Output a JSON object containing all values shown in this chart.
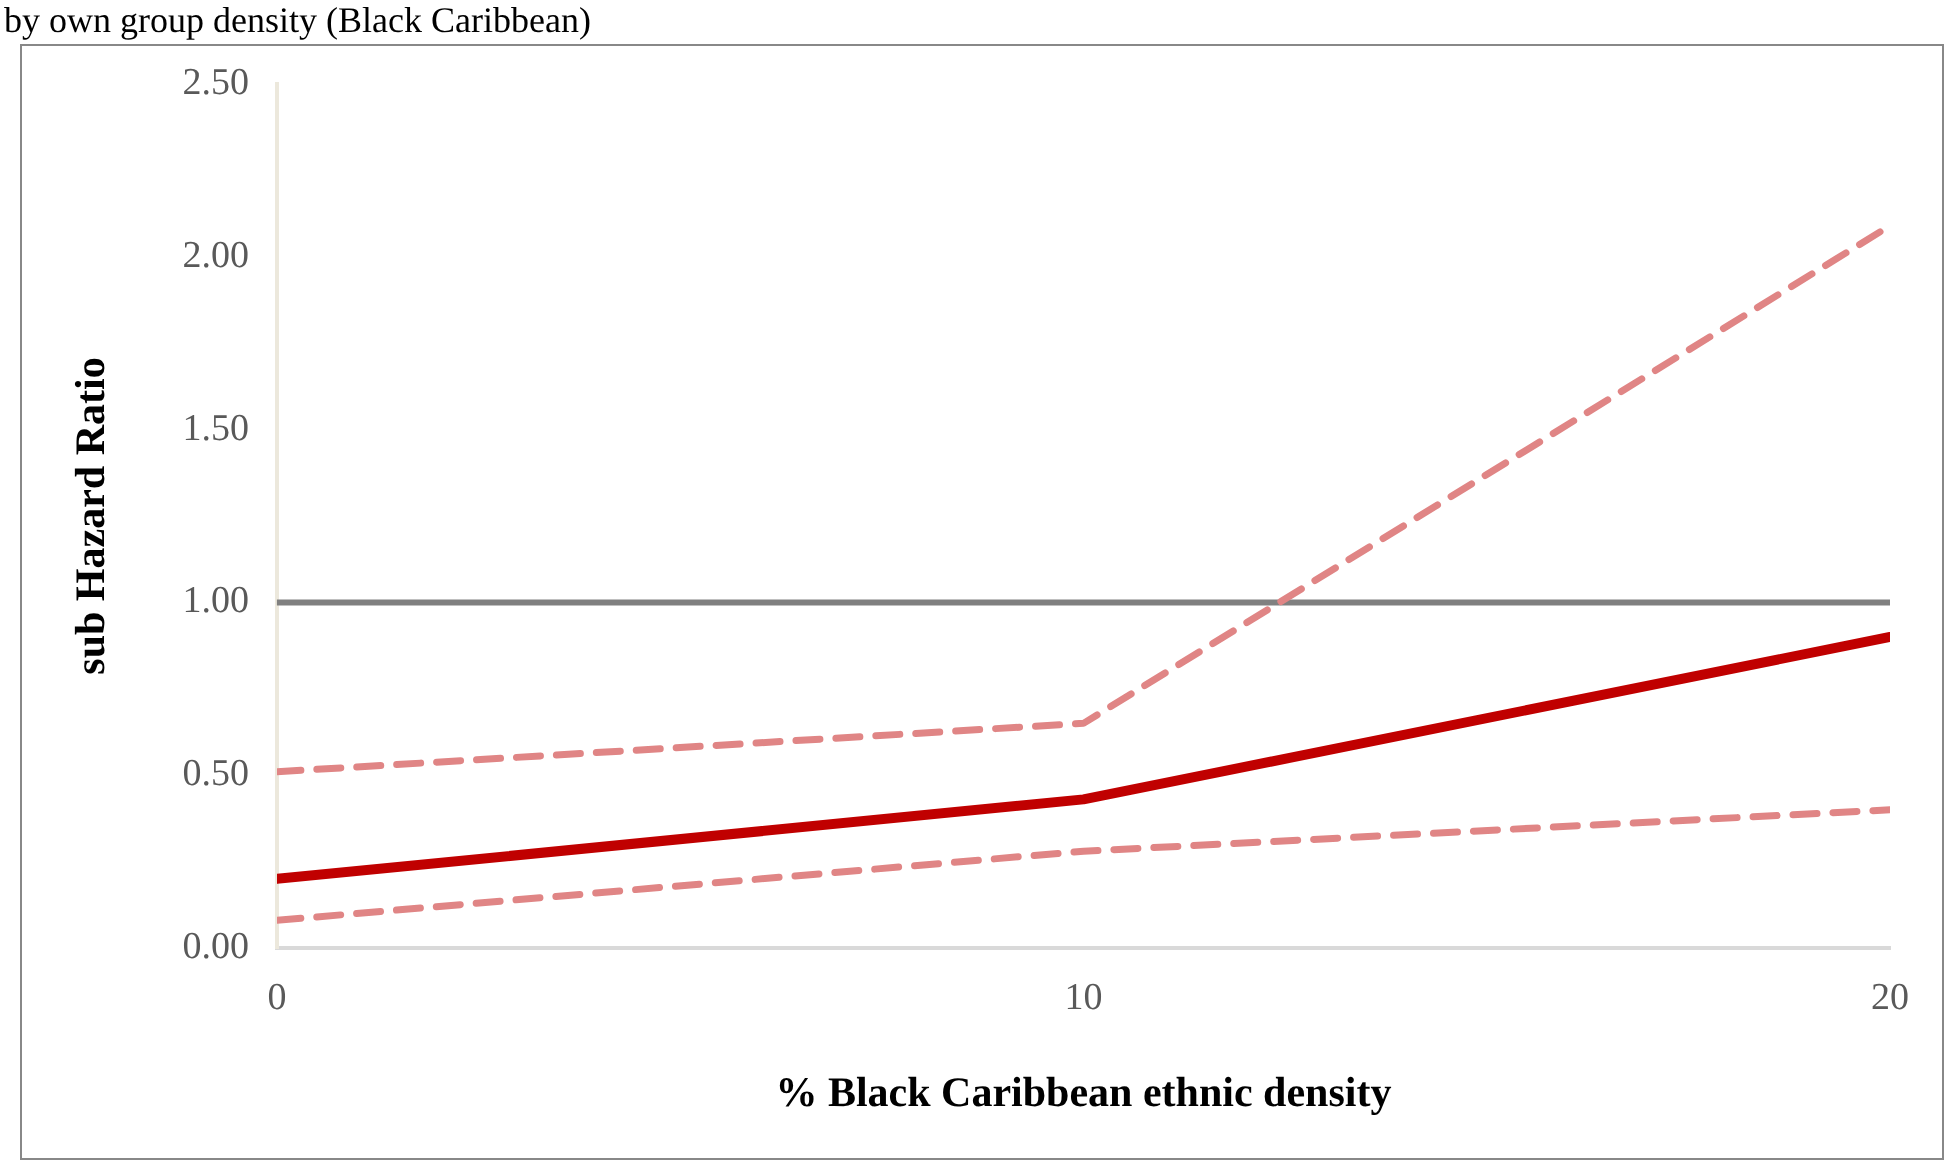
{
  "chart_data": {
    "type": "line",
    "title": "by own group density (Black Caribbean)",
    "xlabel": "% Black Caribbean ethnic density",
    "ylabel": "sub Hazard Ratio",
    "x": [
      0,
      10,
      20
    ],
    "xlim": [
      0,
      20
    ],
    "xticks": [
      0,
      10,
      20
    ],
    "ylim": [
      0,
      2.5
    ],
    "yticks": [
      {
        "value": 0,
        "label": "0.00"
      },
      {
        "value": 0.5,
        "label": "0.50"
      },
      {
        "value": 1,
        "label": "1.00"
      },
      {
        "value": 1.5,
        "label": "1.50"
      },
      {
        "value": 2,
        "label": "2.00"
      },
      {
        "value": 2.5,
        "label": "2.50"
      }
    ],
    "series": [
      {
        "color": "#e08585",
        "values": [
          0.51,
          0.65,
          2.09
        ],
        "line_style": "dashed"
      },
      {
        "color": "#c00000",
        "values": [
          0.2,
          0.43,
          0.9
        ],
        "line_style": "solid"
      },
      {
        "color": "#e08585",
        "values": [
          0.08,
          0.28,
          0.4
        ],
        "line_style": "dashed"
      }
    ],
    "ref_lines": [
      {
        "axis": "y",
        "value": 1,
        "color": "#808080",
        "line_style": "solid"
      }
    ],
    "grid": false,
    "legend": false,
    "marker": "none"
  }
}
